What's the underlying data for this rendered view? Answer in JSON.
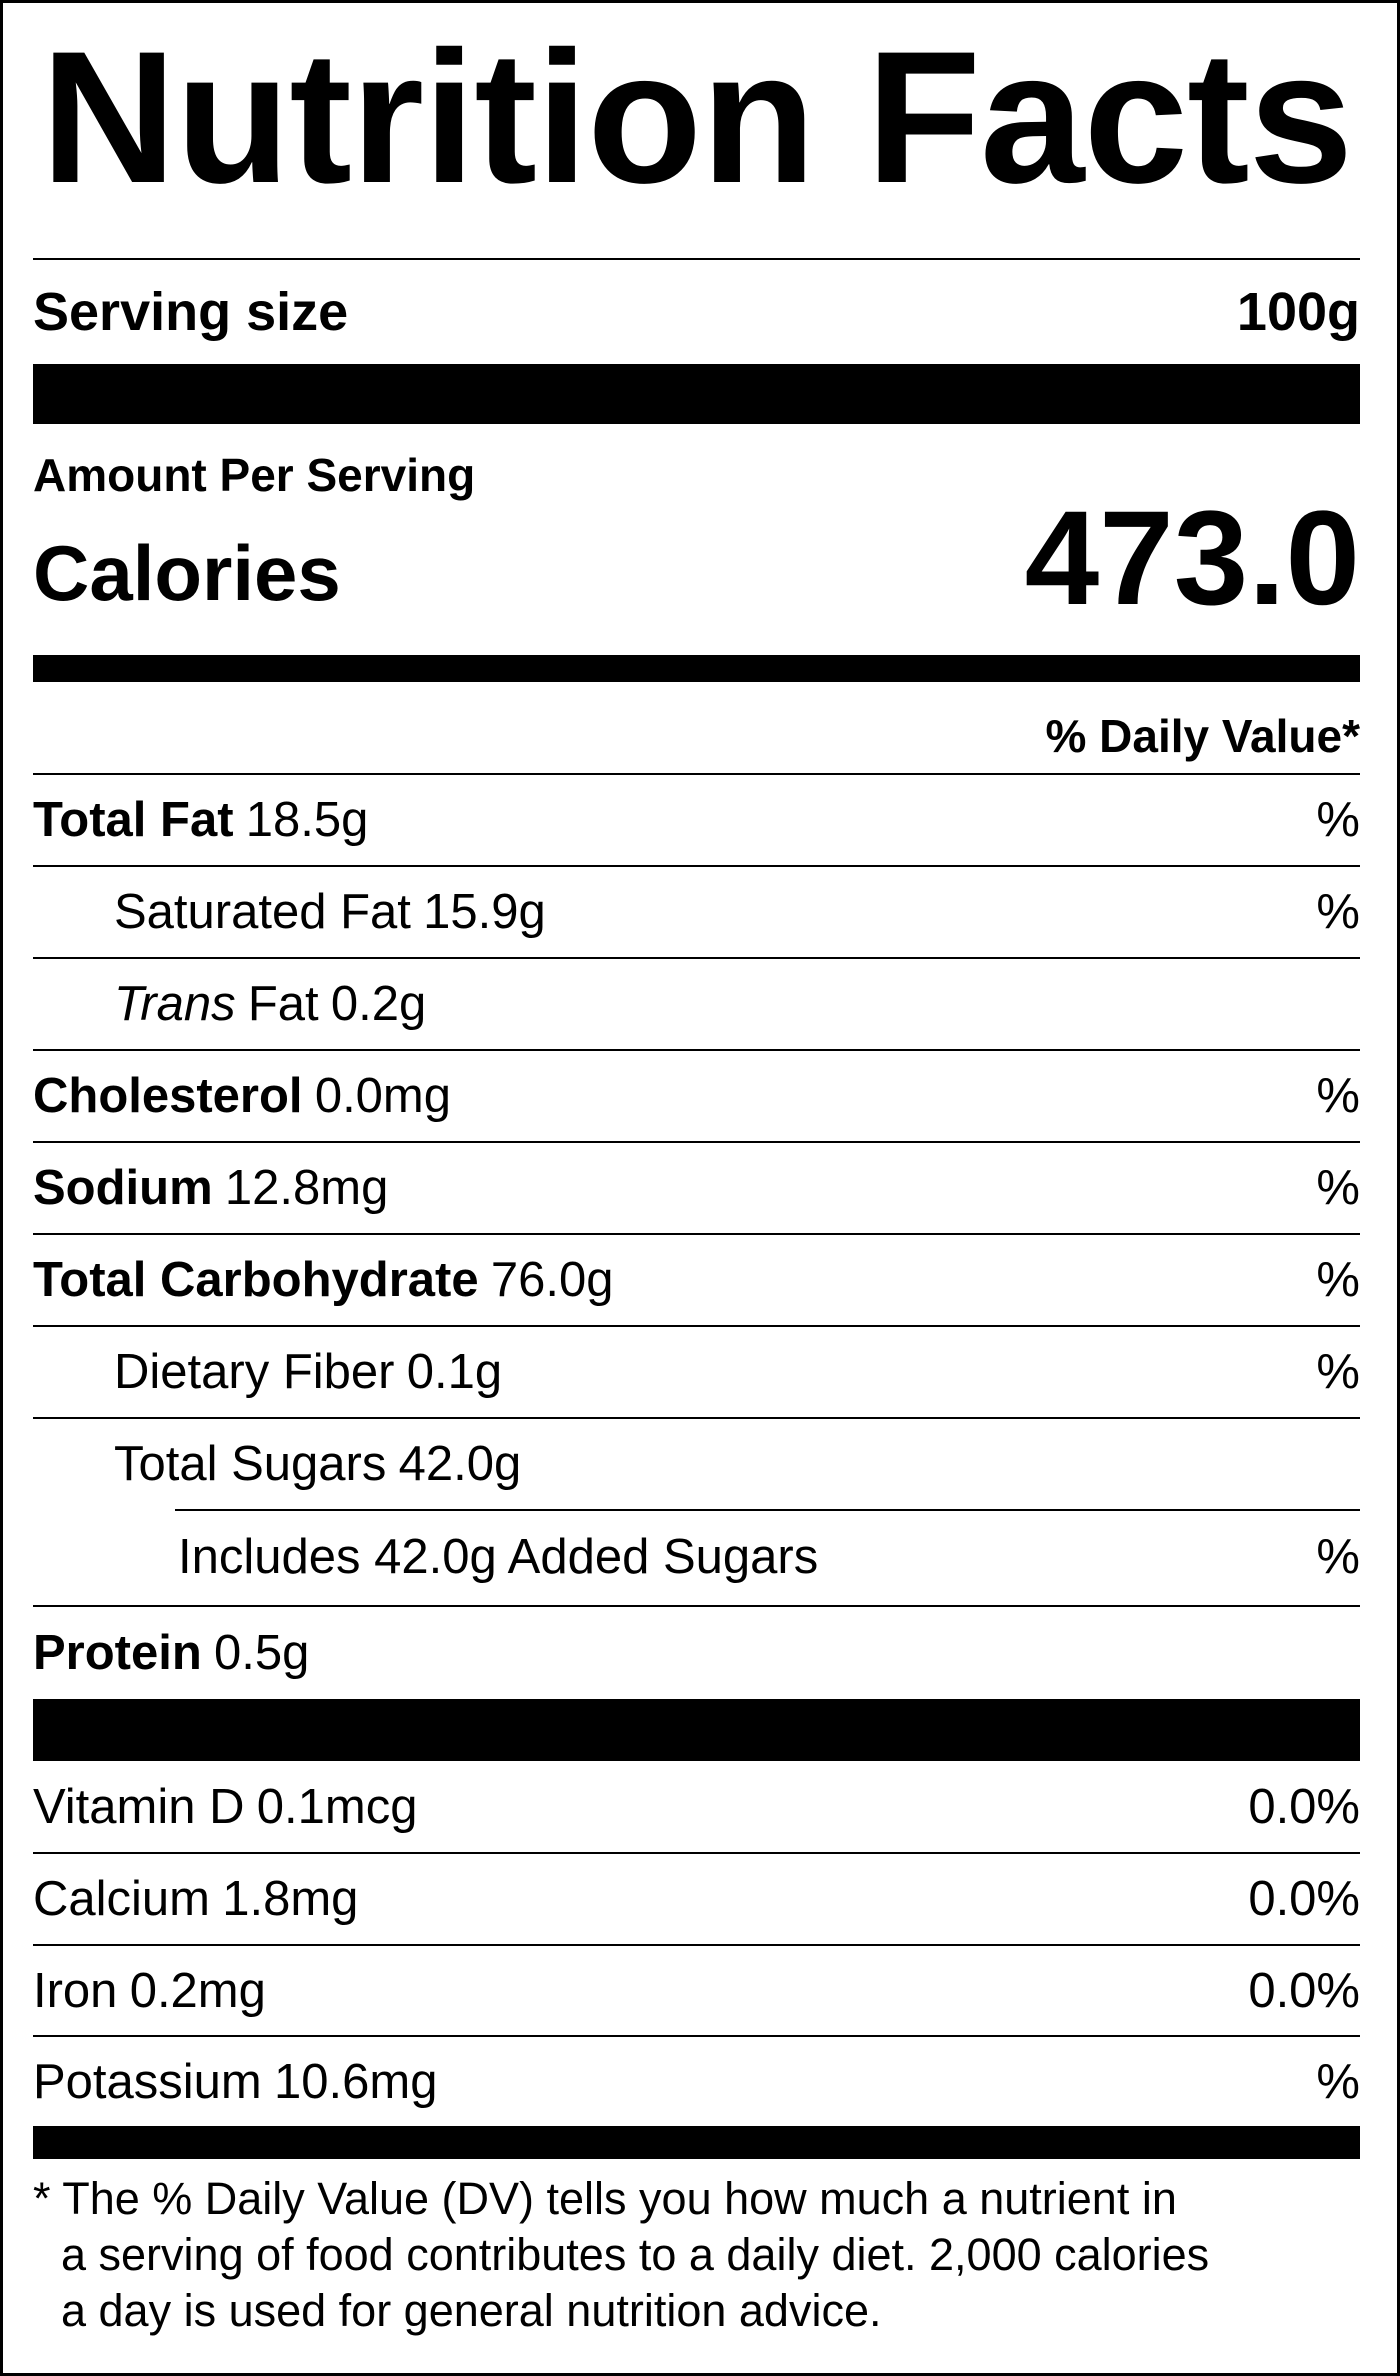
{
  "title": "Nutrition Facts",
  "serving": {
    "label": "Serving size",
    "value": "100g"
  },
  "amount_per_serving": "Amount Per Serving",
  "calories": {
    "label": "Calories",
    "value": "473.0"
  },
  "daily_value_header": "% Daily Value*",
  "nutrients": [
    {
      "name": "Total Fat",
      "amount": "18.5g",
      "dv": "%"
    },
    {
      "name": "Saturated Fat",
      "amount": "15.9g",
      "dv": "%"
    },
    {
      "name_italic": "Trans",
      "name": "Fat",
      "amount": "0.2g"
    },
    {
      "name": "Cholesterol",
      "amount": "0.0mg",
      "dv": "%"
    },
    {
      "name": "Sodium",
      "amount": "12.8mg",
      "dv": "%"
    },
    {
      "name": "Total Carbohydrate",
      "amount": "76.0g",
      "dv": "%"
    },
    {
      "name": "Dietary Fiber",
      "amount": "0.1g",
      "dv": "%"
    },
    {
      "name": "Total Sugars",
      "amount": "42.0g"
    },
    {
      "name": "Includes 42.0g Added Sugars",
      "dv": "%"
    },
    {
      "name": "Protein",
      "amount": "0.5g"
    }
  ],
  "vitamins": [
    {
      "name": "Vitamin D",
      "amount": "0.1mcg",
      "dv": "0.0%"
    },
    {
      "name": "Calcium",
      "amount": "1.8mg",
      "dv": "0.0%"
    },
    {
      "name": "Iron",
      "amount": "0.2mg",
      "dv": "0.0%"
    },
    {
      "name": "Potassium",
      "amount": "10.6mg",
      "dv": "%"
    }
  ],
  "footnote": [
    "* The % Daily Value (DV) tells you how much a nutrient in",
    "a serving of food contributes to a daily diet. 2,000 calories",
    "a day is used for general nutrition advice."
  ]
}
